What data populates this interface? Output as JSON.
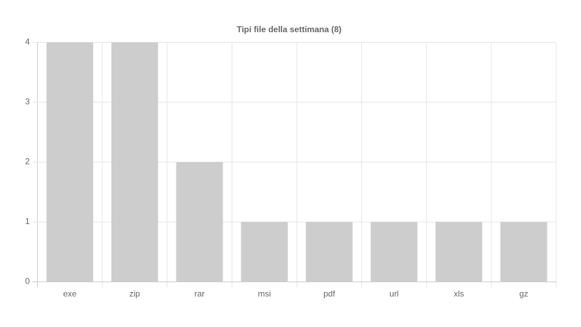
{
  "chart_data": {
    "type": "bar",
    "title": "Tipi file della settimana (8)",
    "categories": [
      "exe",
      "zip",
      "rar",
      "msi",
      "pdf",
      "url",
      "xls",
      "gz"
    ],
    "values": [
      4,
      4,
      2,
      1,
      1,
      1,
      1,
      1
    ],
    "color": "#cdcdce",
    "ylim": [
      0,
      4
    ],
    "yticks": [
      0,
      1,
      2,
      3,
      4
    ],
    "grid": true
  }
}
